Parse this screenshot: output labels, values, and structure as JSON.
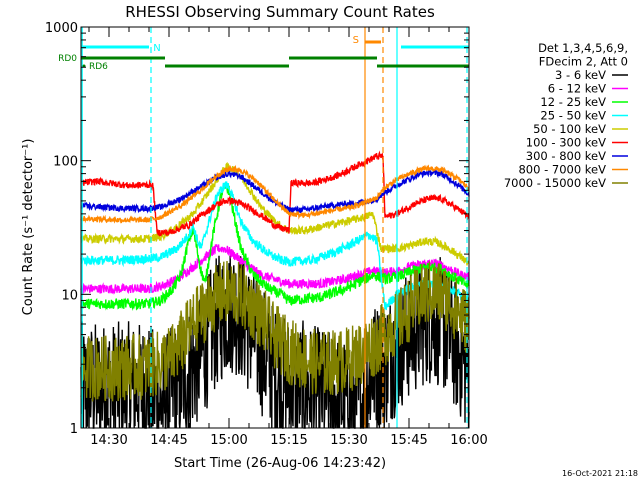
{
  "chart_data": {
    "type": "line",
    "title": "RHESSI Observing Summary Count Rates",
    "xlabel": "Start Time (26-Aug-06 14:23:42)",
    "ylabel": "Count Rate (s⁻¹ detector⁻¹)",
    "ylim": [
      1,
      1000
    ],
    "yscale": "log",
    "x_range_minutes_after_1423": [
      0,
      97
    ],
    "x_tick_labels": [
      "14:30",
      "14:45",
      "15:00",
      "15:15",
      "15:30",
      "15:45",
      "16:00"
    ],
    "x_tick_minutes": [
      7,
      22,
      37,
      52,
      67,
      82,
      97
    ],
    "y_tick_labels": [
      "1",
      "10",
      "100",
      "1000"
    ],
    "y_tick_values": [
      1,
      10,
      100,
      1000
    ],
    "timestamp": "16-Oct-2021 21:18",
    "legend": {
      "placement": "right",
      "header_lines": [
        "Det 1,3,4,5,6,9,",
        "FDecim 2, Att 0"
      ],
      "entries": [
        {
          "label": "3 - 6 keV",
          "color": "#000000"
        },
        {
          "label": "6 - 12 keV",
          "color": "#ff00ff"
        },
        {
          "label": "12 - 25 keV",
          "color": "#00ff00"
        },
        {
          "label": "25 - 50 keV",
          "color": "#00ffff"
        },
        {
          "label": "50 - 100 keV",
          "color": "#cccc00"
        },
        {
          "label": "100 - 300 keV",
          "color": "#ff0000"
        },
        {
          "label": "300 - 800 keV",
          "color": "#0000dd"
        },
        {
          "label": "800 - 7000 keV",
          "color": "#ff8800"
        },
        {
          "label": "7000 - 15000 keV",
          "color": "#808000"
        }
      ]
    },
    "flags": [
      {
        "label": "N",
        "color": "#00ffff",
        "segments": [
          [
            0,
            17
          ],
          [
            80,
            97
          ]
        ]
      },
      {
        "label": "S",
        "color": "#ff8800",
        "segments": [
          [
            71,
            75
          ]
        ]
      },
      {
        "label": "RD0",
        "color": "#008000",
        "segments": [
          [
            0,
            21
          ],
          [
            52,
            74
          ]
        ]
      },
      {
        "label": "RD6",
        "color": "#008000",
        "segments": [
          [
            21,
            52
          ],
          [
            74,
            97
          ]
        ]
      }
    ],
    "vertical_lines": [
      {
        "minute": 0.3,
        "color": "#00ffff",
        "style": "solid"
      },
      {
        "minute": 17.5,
        "color": "#00ffff",
        "style": "dashed"
      },
      {
        "minute": 71,
        "color": "#ff8800",
        "style": "solid"
      },
      {
        "minute": 75.5,
        "color": "#ff8800",
        "style": "dashed"
      },
      {
        "minute": 79,
        "color": "#00ffff",
        "style": "solid"
      },
      {
        "minute": 96.5,
        "color": "#00ffff",
        "style": "dashed"
      }
    ],
    "series": [
      {
        "name": "3 - 6 keV",
        "color": "#000000",
        "noise": 0.5,
        "points": [
          [
            0,
            2
          ],
          [
            8,
            2
          ],
          [
            15,
            2
          ],
          [
            17,
            2
          ],
          [
            20,
            1.5
          ],
          [
            25,
            2.2
          ],
          [
            30,
            3.5
          ],
          [
            33,
            5.5
          ],
          [
            36,
            7.5
          ],
          [
            38,
            8
          ],
          [
            40,
            7
          ],
          [
            43,
            5
          ],
          [
            46,
            3.5
          ],
          [
            50,
            2.2
          ],
          [
            52,
            2.2
          ],
          [
            56,
            2
          ],
          [
            60,
            1.8
          ],
          [
            65,
            1.6
          ],
          [
            70,
            1.5
          ],
          [
            73,
            2.8
          ],
          [
            76,
            3
          ],
          [
            79,
            4
          ],
          [
            82,
            5
          ],
          [
            86,
            6.5
          ],
          [
            89,
            6.5
          ],
          [
            92,
            5
          ],
          [
            95,
            3.5
          ],
          [
            97,
            2.6
          ]
        ]
      },
      {
        "name": "6 - 12 keV",
        "color": "#ff00ff",
        "noise": 0.035,
        "points": [
          [
            0,
            11
          ],
          [
            10,
            11
          ],
          [
            17,
            11
          ],
          [
            20,
            11.5
          ],
          [
            24,
            13
          ],
          [
            28,
            16
          ],
          [
            31,
            19
          ],
          [
            34,
            22
          ],
          [
            36,
            22
          ],
          [
            38,
            20
          ],
          [
            41,
            17
          ],
          [
            45,
            14
          ],
          [
            50,
            12.5
          ],
          [
            52,
            12
          ],
          [
            60,
            12
          ],
          [
            66,
            13
          ],
          [
            71,
            14.5
          ],
          [
            73,
            15
          ],
          [
            76,
            14.5
          ],
          [
            79,
            15
          ],
          [
            82,
            16
          ],
          [
            86,
            17
          ],
          [
            89,
            17
          ],
          [
            92,
            15.5
          ],
          [
            95,
            14
          ],
          [
            97,
            13.5
          ]
        ]
      },
      {
        "name": "12 - 25 keV",
        "color": "#00ff00",
        "noise": 0.04,
        "points": [
          [
            0,
            8.5
          ],
          [
            10,
            8.5
          ],
          [
            17,
            8.5
          ],
          [
            20,
            9
          ],
          [
            23,
            11
          ],
          [
            25,
            14
          ],
          [
            27,
            26
          ],
          [
            28,
            30
          ],
          [
            29,
            22
          ],
          [
            30,
            15
          ],
          [
            31,
            12
          ],
          [
            33,
            28
          ],
          [
            35,
            55
          ],
          [
            36,
            63
          ],
          [
            37,
            60
          ],
          [
            38,
            42
          ],
          [
            40,
            22
          ],
          [
            43,
            14
          ],
          [
            47,
            11
          ],
          [
            50,
            10
          ],
          [
            52,
            9
          ],
          [
            60,
            9.5
          ],
          [
            66,
            11
          ],
          [
            71,
            13
          ],
          [
            73,
            14
          ],
          [
            76,
            13
          ],
          [
            79,
            13.5
          ],
          [
            83,
            15
          ],
          [
            87,
            16
          ],
          [
            90,
            15.5
          ],
          [
            94,
            13
          ],
          [
            97,
            11.5
          ]
        ]
      },
      {
        "name": "25 - 50 keV",
        "color": "#00ffff",
        "noise": 0.035,
        "points": [
          [
            0,
            18
          ],
          [
            10,
            18
          ],
          [
            17,
            18.5
          ],
          [
            20,
            19
          ],
          [
            24,
            22
          ],
          [
            27,
            28
          ],
          [
            28,
            33
          ],
          [
            29,
            26
          ],
          [
            30,
            22
          ],
          [
            32,
            35
          ],
          [
            34,
            55
          ],
          [
            36,
            66
          ],
          [
            37,
            64
          ],
          [
            38,
            52
          ],
          [
            40,
            35
          ],
          [
            43,
            25
          ],
          [
            47,
            20
          ],
          [
            50,
            18
          ],
          [
            52,
            17.5
          ],
          [
            58,
            18
          ],
          [
            64,
            21
          ],
          [
            70,
            26
          ],
          [
            72,
            28
          ],
          [
            74,
            25
          ],
          [
            76,
            8
          ],
          [
            79,
            10
          ],
          [
            82,
            11
          ],
          [
            86,
            12
          ],
          [
            89,
            12
          ],
          [
            92,
            11
          ],
          [
            95,
            10
          ],
          [
            97,
            9.5
          ]
        ]
      },
      {
        "name": "50 - 100 keV",
        "color": "#cccc00",
        "noise": 0.03,
        "points": [
          [
            0,
            26
          ],
          [
            10,
            26
          ],
          [
            17,
            26
          ],
          [
            20,
            27
          ],
          [
            24,
            32
          ],
          [
            28,
            40
          ],
          [
            31,
            53
          ],
          [
            34,
            72
          ],
          [
            36,
            88
          ],
          [
            37,
            90
          ],
          [
            39,
            82
          ],
          [
            42,
            62
          ],
          [
            45,
            45
          ],
          [
            49,
            34
          ],
          [
            52,
            30
          ],
          [
            56,
            30
          ],
          [
            62,
            33
          ],
          [
            68,
            36
          ],
          [
            71,
            38
          ],
          [
            73,
            40
          ],
          [
            75,
            22
          ],
          [
            79,
            22
          ],
          [
            82,
            23
          ],
          [
            86,
            25
          ],
          [
            89,
            24.5
          ],
          [
            92,
            22
          ],
          [
            95,
            19
          ],
          [
            97,
            17
          ]
        ]
      },
      {
        "name": "100 - 300 keV",
        "color": "#ff0000",
        "noise": 0.025,
        "points": [
          [
            0,
            68
          ],
          [
            4,
            70
          ],
          [
            12,
            65
          ],
          [
            17,
            66
          ],
          [
            18,
            65
          ],
          [
            19,
            29
          ],
          [
            22,
            29
          ],
          [
            27,
            33
          ],
          [
            31,
            41
          ],
          [
            34,
            47
          ],
          [
            36,
            50
          ],
          [
            38,
            50
          ],
          [
            41,
            46
          ],
          [
            45,
            39
          ],
          [
            49,
            32
          ],
          [
            52,
            30
          ],
          [
            52.5,
            68
          ],
          [
            58,
            68
          ],
          [
            64,
            77
          ],
          [
            70,
            95
          ],
          [
            74,
            108
          ],
          [
            75.5,
            108
          ],
          [
            76,
            38
          ],
          [
            79,
            40
          ],
          [
            83,
            47
          ],
          [
            87,
            52
          ],
          [
            90,
            52
          ],
          [
            93,
            46
          ],
          [
            96,
            40
          ],
          [
            97,
            37
          ]
        ]
      },
      {
        "name": "300 - 800 keV",
        "color": "#0000dd",
        "noise": 0.022,
        "points": [
          [
            0,
            46
          ],
          [
            10,
            44
          ],
          [
            17,
            44
          ],
          [
            20,
            45
          ],
          [
            25,
            52
          ],
          [
            30,
            64
          ],
          [
            34,
            75
          ],
          [
            37,
            80
          ],
          [
            40,
            76
          ],
          [
            44,
            62
          ],
          [
            48,
            50
          ],
          [
            52,
            43
          ],
          [
            56,
            43
          ],
          [
            62,
            46
          ],
          [
            68,
            48
          ],
          [
            72,
            50
          ],
          [
            74,
            52
          ],
          [
            76,
            58
          ],
          [
            80,
            68
          ],
          [
            84,
            78
          ],
          [
            87,
            82
          ],
          [
            90,
            80
          ],
          [
            94,
            67
          ],
          [
            97,
            56
          ]
        ]
      },
      {
        "name": "800 - 7000 keV",
        "color": "#ff8800",
        "noise": 0.02,
        "points": [
          [
            0,
            37
          ],
          [
            10,
            36
          ],
          [
            17,
            36
          ],
          [
            20,
            38
          ],
          [
            25,
            46
          ],
          [
            30,
            60
          ],
          [
            34,
            78
          ],
          [
            37,
            87
          ],
          [
            40,
            85
          ],
          [
            44,
            70
          ],
          [
            48,
            52
          ],
          [
            52,
            40
          ],
          [
            56,
            39
          ],
          [
            62,
            42
          ],
          [
            68,
            45
          ],
          [
            72,
            50
          ],
          [
            74,
            53
          ],
          [
            76,
            63
          ],
          [
            80,
            75
          ],
          [
            84,
            84
          ],
          [
            87,
            88
          ],
          [
            90,
            86
          ],
          [
            94,
            74
          ],
          [
            97,
            62
          ]
        ]
      },
      {
        "name": "7000 - 15000 keV",
        "color": "#808000",
        "noise": 0.25,
        "points": [
          [
            0,
            2.8
          ],
          [
            8,
            2.8
          ],
          [
            16,
            2.9
          ],
          [
            19,
            3
          ],
          [
            23,
            3.5
          ],
          [
            28,
            6
          ],
          [
            32,
            8.5
          ],
          [
            35,
            10
          ],
          [
            37,
            10.3
          ],
          [
            40,
            9.8
          ],
          [
            44,
            7.5
          ],
          [
            48,
            5
          ],
          [
            52,
            3.8
          ],
          [
            56,
            3.3
          ],
          [
            60,
            3
          ],
          [
            66,
            3.2
          ],
          [
            70,
            3.6
          ],
          [
            72,
            4
          ],
          [
            74,
            4.4
          ],
          [
            77,
            5.5
          ],
          [
            80,
            6.5
          ],
          [
            83,
            8.5
          ],
          [
            86,
            10
          ],
          [
            89,
            10.5
          ],
          [
            92,
            9
          ],
          [
            95,
            7
          ],
          [
            97,
            6
          ]
        ]
      }
    ]
  }
}
